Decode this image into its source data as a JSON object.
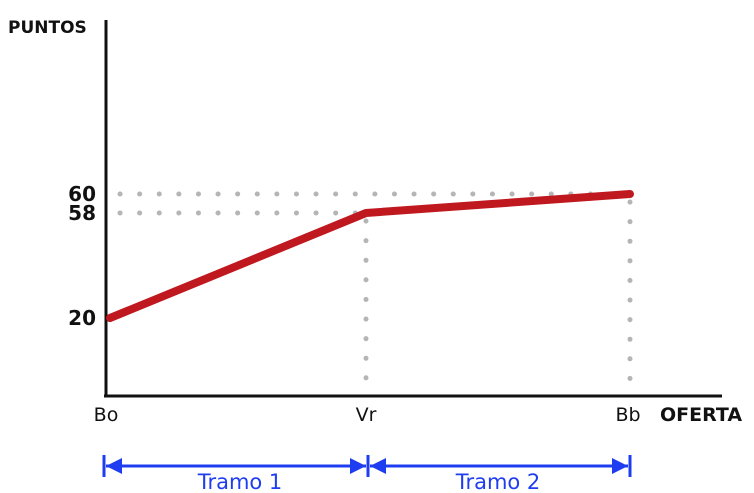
{
  "chart_data": {
    "type": "line",
    "ylabel": "PUNTOS",
    "xlabel": "OFERTA",
    "categories": [
      "Bo",
      "Vr",
      "Bb"
    ],
    "series": [
      {
        "values": [
          20,
          58,
          60
        ]
      }
    ],
    "y_ticks": [
      "60",
      "58",
      "20"
    ],
    "y_tick_values": [
      60,
      58,
      20
    ],
    "ylim": [
      0,
      90
    ],
    "grid": false,
    "reference_lines": "dotted",
    "colors": {
      "line": "#c0181f",
      "axis": "#111111",
      "guides": "#b5b5b5",
      "brackets": "#1f3df0"
    },
    "brackets": [
      {
        "label": "Tramo 1",
        "from": "Bo",
        "to": "Vr"
      },
      {
        "label": "Tramo 2",
        "from": "Vr",
        "to": "Bb"
      }
    ]
  }
}
